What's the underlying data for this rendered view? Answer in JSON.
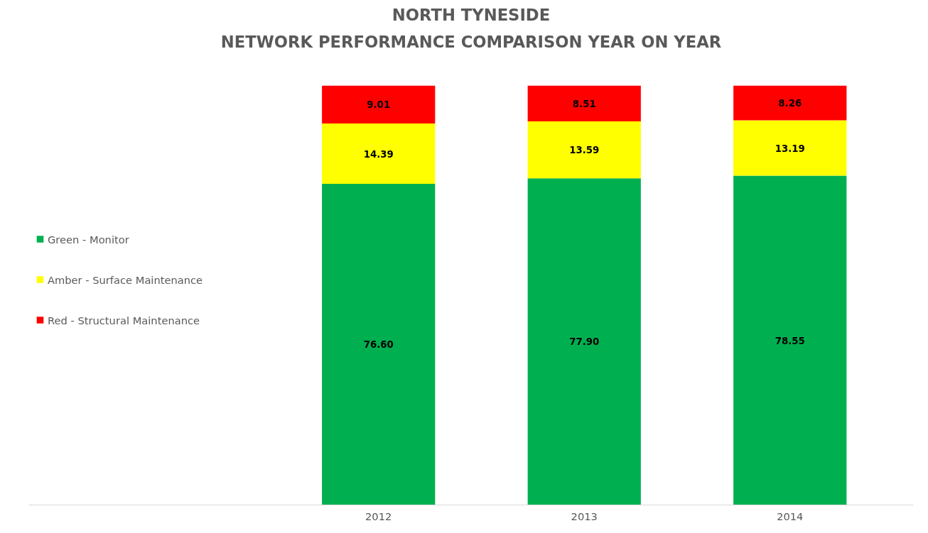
{
  "chart_data": {
    "type": "bar",
    "title": "NORTH TYNESIDE",
    "subtitle": "NETWORK PERFORMANCE COMPARISON YEAR ON YEAR",
    "categories": [
      "2012",
      "2013",
      "2014"
    ],
    "series": [
      {
        "name": "Green - Monitor",
        "color": "#00b050",
        "values": [
          76.6,
          77.9,
          78.55
        ],
        "value_labels": [
          "76.60",
          "77.90",
          "78.55"
        ]
      },
      {
        "name": "Amber - Surface Maintenance",
        "color": "#ffff00",
        "values": [
          14.39,
          13.59,
          13.19
        ]
      },
      {
        "name": "Red - Structural Maintenance",
        "color": "#ff0000",
        "values": [
          9.01,
          8.51,
          8.26
        ]
      }
    ],
    "stacked": true,
    "data_labels": true,
    "legend": "left",
    "grid": false
  }
}
